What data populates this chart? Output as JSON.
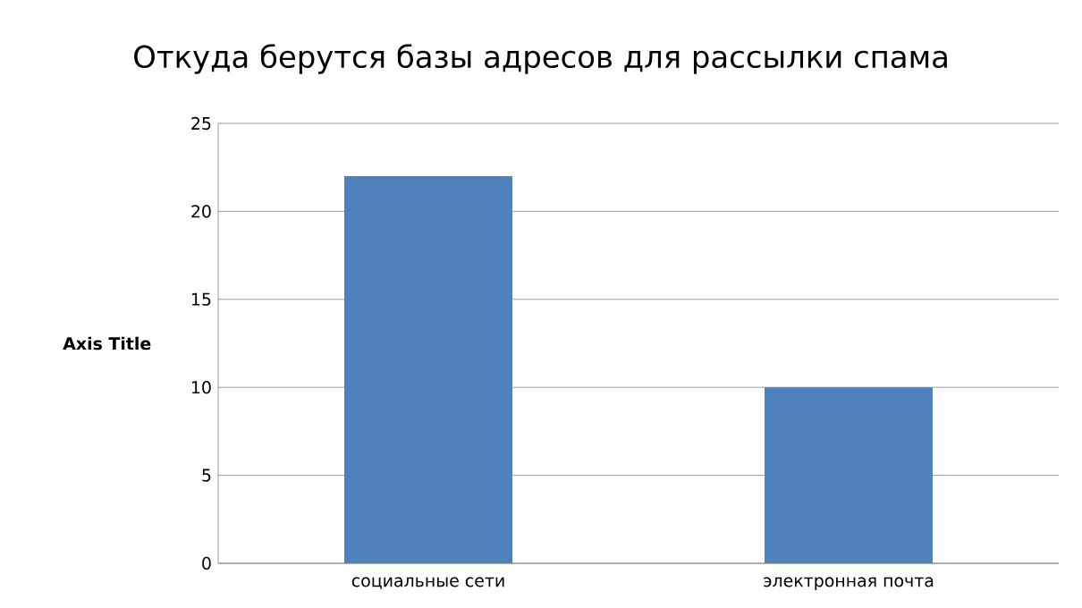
{
  "chart_data": {
    "type": "bar",
    "title": "Откуда берутся базы адресов для рассылки спама",
    "ylabel": "Axis Title",
    "categories": [
      "социальные сети",
      "электронная почта"
    ],
    "values": [
      22,
      10
    ],
    "color": "#4f81bd",
    "ylim": [
      0,
      25
    ],
    "yticks": [
      0,
      5,
      10,
      15,
      20,
      25
    ],
    "grid": "y"
  }
}
